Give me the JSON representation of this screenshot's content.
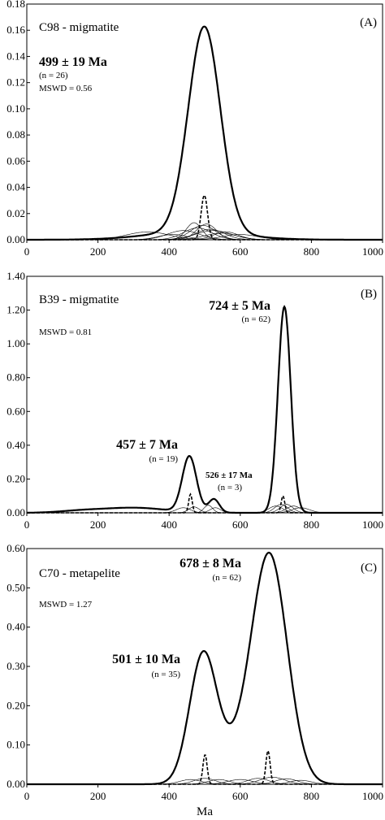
{
  "chart_data": [
    {
      "type": "line",
      "panel_label": "(A)",
      "title": "C98 - migmatite",
      "xlim": [
        0,
        1000
      ],
      "ylim": [
        0,
        0.18
      ],
      "xticks": [
        "0",
        "200",
        "400",
        "600",
        "800",
        "1000"
      ],
      "yticks": [
        "0.00",
        "0.02",
        "0.04",
        "0.06",
        "0.08",
        "0.10",
        "0.12",
        "0.14",
        "0.16",
        "0.18"
      ],
      "annotations": [
        {
          "text": "499 ± 19 Ma",
          "style": "bold"
        },
        {
          "text": "(n = 26)",
          "style": "small"
        },
        {
          "text": "MSWD = 0.56",
          "style": "small"
        }
      ],
      "series": [
        {
          "style": "solid-bold",
          "peaks": [
            {
              "center": 499,
              "height": 0.157,
              "width": 45
            }
          ],
          "tail": {
            "center": 470,
            "height": 0.006,
            "width": 130
          }
        },
        {
          "style": "dashed",
          "peaks": [
            {
              "center": 499,
              "height": 0.034,
              "width": 9
            }
          ]
        }
      ],
      "minor_curves": [
        {
          "center": 340,
          "height": 0.006,
          "width": 60
        },
        {
          "center": 410,
          "height": 0.004,
          "width": 40
        },
        {
          "center": 440,
          "height": 0.007,
          "width": 45
        },
        {
          "center": 470,
          "height": 0.013,
          "width": 22
        },
        {
          "center": 480,
          "height": 0.009,
          "width": 40
        },
        {
          "center": 495,
          "height": 0.011,
          "width": 35
        },
        {
          "center": 505,
          "height": 0.012,
          "width": 28
        },
        {
          "center": 515,
          "height": 0.008,
          "width": 40
        },
        {
          "center": 525,
          "height": 0.007,
          "width": 50
        },
        {
          "center": 545,
          "height": 0.005,
          "width": 45
        },
        {
          "center": 560,
          "height": 0.006,
          "width": 35
        },
        {
          "center": 600,
          "height": 0.004,
          "width": 50
        }
      ]
    },
    {
      "type": "line",
      "panel_label": "(B)",
      "title": "B39 - migmatite",
      "xlim": [
        0,
        1000
      ],
      "ylim": [
        0,
        1.4
      ],
      "xticks": [
        "0",
        "200",
        "400",
        "600",
        "800",
        "1000"
      ],
      "yticks": [
        "0.00",
        "0.20",
        "0.40",
        "0.60",
        "0.80",
        "1.00",
        "1.20",
        "1.40"
      ],
      "annotations": [
        {
          "text": "724 ± 5 Ma",
          "style": "bold"
        },
        {
          "text": "(n = 62)",
          "style": "small"
        },
        {
          "text": "MSWD = 0.81",
          "style": "small"
        },
        {
          "text": "457 ± 7 Ma",
          "style": "bold"
        },
        {
          "text": "(n = 19)",
          "style": "small"
        },
        {
          "text": "526 ± 17 Ma",
          "style": "bold-small"
        },
        {
          "text": "(n = 3)",
          "style": "small"
        }
      ],
      "series": [
        {
          "style": "solid-bold",
          "peaks": [
            {
              "center": 150,
              "height": 0.01,
              "width": 60
            },
            {
              "center": 300,
              "height": 0.03,
              "width": 90
            },
            {
              "center": 457,
              "height": 0.33,
              "width": 20
            },
            {
              "center": 526,
              "height": 0.08,
              "width": 15
            },
            {
              "center": 724,
              "height": 1.22,
              "width": 18
            }
          ]
        },
        {
          "style": "dashed",
          "peaks": [
            {
              "center": 460,
              "height": 0.11,
              "width": 5
            },
            {
              "center": 720,
              "height": 0.1,
              "width": 5
            }
          ]
        }
      ],
      "minor_curves": [
        {
          "center": 440,
          "height": 0.03,
          "width": 20
        },
        {
          "center": 470,
          "height": 0.035,
          "width": 15
        },
        {
          "center": 510,
          "height": 0.045,
          "width": 12
        },
        {
          "center": 530,
          "height": 0.03,
          "width": 15
        },
        {
          "center": 700,
          "height": 0.04,
          "width": 20
        },
        {
          "center": 715,
          "height": 0.05,
          "width": 18
        },
        {
          "center": 730,
          "height": 0.05,
          "width": 18
        },
        {
          "center": 750,
          "height": 0.04,
          "width": 20
        },
        {
          "center": 770,
          "height": 0.03,
          "width": 25
        }
      ]
    },
    {
      "type": "line",
      "panel_label": "(C)",
      "title": "C70 - metapelite",
      "xlim": [
        0,
        1000
      ],
      "ylim": [
        0,
        0.6
      ],
      "xticks": [
        "0",
        "200",
        "400",
        "600",
        "800",
        "1000"
      ],
      "yticks": [
        "0.00",
        "0.10",
        "0.20",
        "0.30",
        "0.40",
        "0.50",
        "0.60"
      ],
      "xlabel": "Ma",
      "annotations": [
        {
          "text": "678 ± 8 Ma",
          "style": "bold"
        },
        {
          "text": "(n = 62)",
          "style": "small"
        },
        {
          "text": "MSWD = 1.27",
          "style": "small"
        },
        {
          "text": "501 ± 10 Ma",
          "style": "bold"
        },
        {
          "text": "(n = 35)",
          "style": "small"
        }
      ],
      "series": [
        {
          "style": "solid-bold",
          "peaks": [
            {
              "center": 495,
              "height": 0.31,
              "width": 38
            },
            {
              "center": 683,
              "height": 0.56,
              "width": 50
            },
            {
              "center": 590,
              "height": 0.07,
              "width": 70
            }
          ]
        },
        {
          "style": "dashed",
          "peaks": [
            {
              "center": 501,
              "height": 0.075,
              "width": 6
            },
            {
              "center": 678,
              "height": 0.085,
              "width": 6
            }
          ]
        }
      ],
      "minor_curves": [
        {
          "center": 460,
          "height": 0.012,
          "width": 30
        },
        {
          "center": 500,
          "height": 0.015,
          "width": 30
        },
        {
          "center": 540,
          "height": 0.012,
          "width": 30
        },
        {
          "center": 600,
          "height": 0.012,
          "width": 35
        },
        {
          "center": 650,
          "height": 0.015,
          "width": 30
        },
        {
          "center": 690,
          "height": 0.018,
          "width": 35
        },
        {
          "center": 730,
          "height": 0.014,
          "width": 30
        },
        {
          "center": 770,
          "height": 0.01,
          "width": 30
        }
      ]
    }
  ]
}
